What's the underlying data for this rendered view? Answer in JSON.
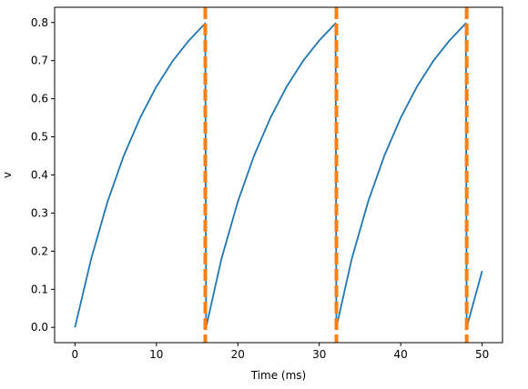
{
  "chart_data": {
    "type": "line",
    "title": "",
    "xlabel": "Time (ms)",
    "ylabel": "v",
    "xlim": [
      -2.5,
      52.5
    ],
    "ylim": [
      -0.04,
      0.84
    ],
    "xticks": [
      0,
      10,
      20,
      30,
      40,
      50
    ],
    "xtick_labels": [
      "0",
      "10",
      "20",
      "30",
      "40",
      "50"
    ],
    "yticks": [
      0.0,
      0.1,
      0.2,
      0.3,
      0.4,
      0.5,
      0.6,
      0.7,
      0.8
    ],
    "ytick_labels": [
      "0.0",
      "0.1",
      "0.2",
      "0.3",
      "0.4",
      "0.5",
      "0.6",
      "0.7",
      "0.8"
    ],
    "grid": false,
    "series": [
      {
        "color": "#1f77b4",
        "x": [
          0,
          2,
          4,
          6,
          8,
          10,
          12,
          14,
          16,
          16.1,
          18,
          20,
          22,
          24,
          26,
          28,
          30,
          32,
          32.1,
          34,
          36,
          38,
          40,
          42,
          44,
          46,
          48,
          48.1,
          50
        ],
        "y": [
          0.0,
          0.181,
          0.33,
          0.451,
          0.55,
          0.632,
          0.699,
          0.753,
          0.798,
          0.0,
          0.181,
          0.33,
          0.451,
          0.55,
          0.632,
          0.699,
          0.753,
          0.798,
          0.0,
          0.181,
          0.33,
          0.451,
          0.55,
          0.632,
          0.699,
          0.753,
          0.798,
          0.0,
          0.148
        ]
      }
    ],
    "vlines": {
      "x": [
        16,
        32.1,
        48.1
      ],
      "color": "#ff7f0e",
      "style": "dashed"
    }
  }
}
